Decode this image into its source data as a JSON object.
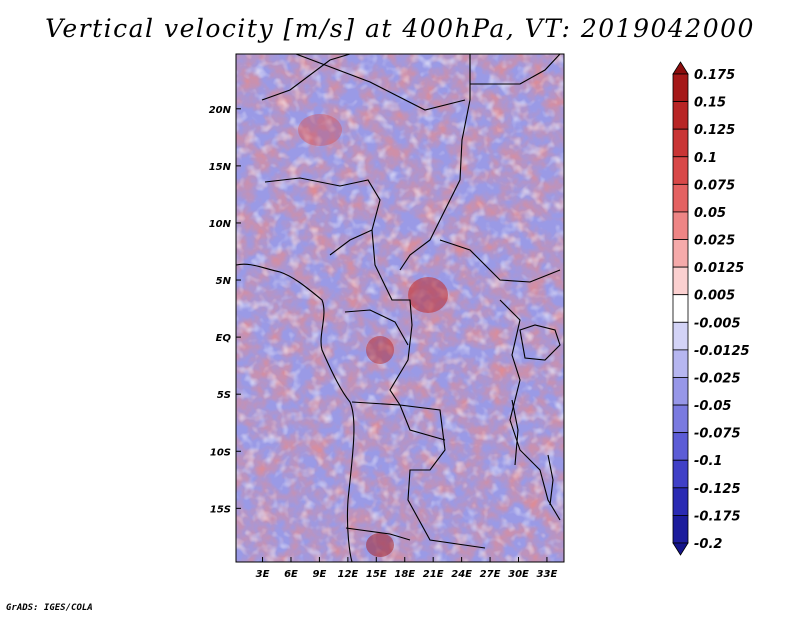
{
  "chart_data": {
    "type": "heatmap",
    "title": "Vertical velocity [m/s] at 400hPa, VT: 2019042000",
    "variable": "Vertical velocity",
    "units": "m/s",
    "level": "400hPa",
    "valid_time": "2019042000",
    "x_ticks": [
      "3E",
      "6E",
      "9E",
      "12E",
      "15E",
      "18E",
      "21E",
      "24E",
      "27E",
      "30E",
      "33E"
    ],
    "y_ticks": [
      "20N",
      "15N",
      "10N",
      "5N",
      "EQ",
      "5S",
      "10S",
      "15S"
    ],
    "x_tick_values": [
      3,
      6,
      9,
      12,
      15,
      18,
      21,
      24,
      27,
      30,
      33
    ],
    "y_tick_values": [
      20,
      15,
      10,
      5,
      0,
      -5,
      -10,
      -15
    ],
    "xlim": [
      0.2,
      34.8
    ],
    "ylim": [
      -19.7,
      24.8
    ],
    "colorbar": {
      "labels": [
        "0.175",
        "0.15",
        "0.125",
        "0.1",
        "0.075",
        "0.05",
        "0.025",
        "0.0125",
        "0.005",
        "-0.005",
        "-0.0125",
        "-0.025",
        "-0.05",
        "-0.075",
        "-0.1",
        "-0.125",
        "-0.175",
        "-0.2"
      ],
      "colors": [
        "#8b0d0d",
        "#a51818",
        "#b82525",
        "#c93535",
        "#d84848",
        "#e46262",
        "#ee8585",
        "#f5aaaa",
        "#fbd0d0",
        "#ffffff",
        "#d3d3f6",
        "#b6b6f0",
        "#9797e8",
        "#7a7ae0",
        "#5c5cd6",
        "#4040c7",
        "#2a2ab3",
        "#1c1c9c",
        "#14148a"
      ]
    }
  },
  "credit": "GrADS: IGES/COLA"
}
